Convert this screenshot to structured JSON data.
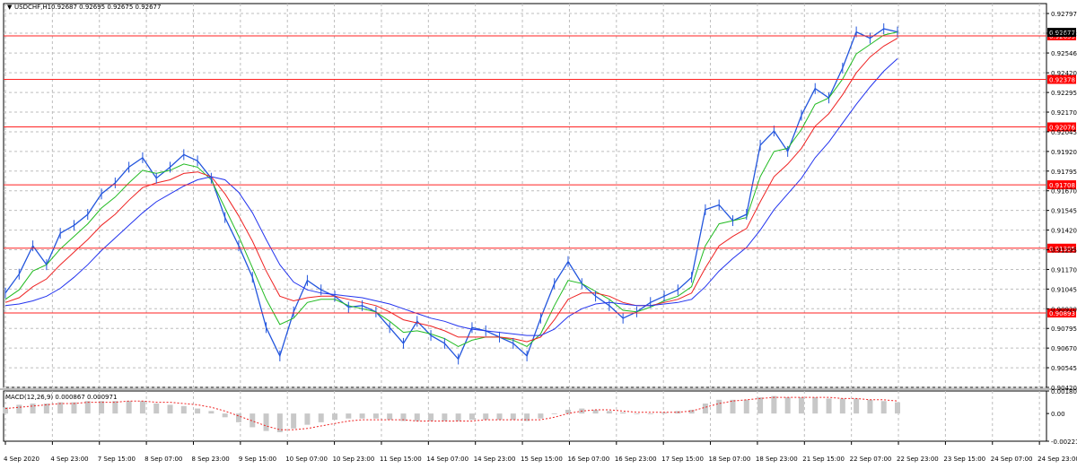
{
  "header": {
    "symbol_label": "USDCHF,H1",
    "ohlc_text": "0.92687 0.92695 0.92675 0.92677"
  },
  "macd": {
    "label": "MACD(12,26,9) 0.000867 0.000971",
    "y_ticks": [
      "0.001807",
      "0.00",
      "-0.002219"
    ]
  },
  "colors": {
    "candles": "#2255dd",
    "ma_fast": "#22bb22",
    "ma_mid": "#ee2222",
    "ma_slow": "#2233ee",
    "level_line": "#ff2222",
    "level_label_bg": "#ff0000",
    "grid": "#bdbdbd"
  },
  "chart_data": {
    "type": "line",
    "title": "USDCHF,H1",
    "ylim": [
      0.9042,
      0.9286
    ],
    "y_ticks": [
      "0.92797",
      "0.92672",
      "0.92546",
      "0.92420",
      "0.92295",
      "0.92170",
      "0.92045",
      "0.91920",
      "0.91795",
      "0.91670",
      "0.91545",
      "0.91420",
      "0.91295",
      "0.91170",
      "0.91045",
      "0.90920",
      "0.90795",
      "0.90670",
      "0.90545",
      "0.90420"
    ],
    "x_ticks": [
      "4 Sep 2020",
      "4 Sep 23:00",
      "7 Sep 15:00",
      "8 Sep 07:00",
      "8 Sep 23:00",
      "9 Sep 15:00",
      "10 Sep 07:00",
      "10 Sep 23:00",
      "11 Sep 15:00",
      "14 Sep 07:00",
      "14 Sep 23:00",
      "15 Sep 15:00",
      "16 Sep 07:00",
      "16 Sep 23:00",
      "17 Sep 15:00",
      "18 Sep 07:00",
      "18 Sep 23:00",
      "21 Sep 15:00",
      "22 Sep 07:00",
      "22 Sep 23:00",
      "23 Sep 15:00",
      "24 Sep 07:00",
      "24 Sep 23:00"
    ],
    "levels": [
      {
        "value": 0.92655,
        "label": "0.92655"
      },
      {
        "value": 0.92378,
        "label": "0.92378"
      },
      {
        "value": 0.92076,
        "label": "0.92076"
      },
      {
        "value": 0.91708,
        "label": "0.91708"
      },
      {
        "value": 0.91305,
        "label": "0.91305"
      },
      {
        "value": 0.90893,
        "label": "0.90893"
      }
    ],
    "current_price": {
      "value": 0.92677,
      "label": "0.92677"
    },
    "series": [
      {
        "key": "price",
        "values": [
          0.9102,
          0.9114,
          0.9132,
          0.912,
          0.914,
          0.9145,
          0.9152,
          0.9165,
          0.9172,
          0.9182,
          0.9188,
          0.9175,
          0.9182,
          0.919,
          0.9186,
          0.9175,
          0.915,
          0.9132,
          0.9112,
          0.908,
          0.9062,
          0.909,
          0.911,
          0.9104,
          0.91,
          0.9093,
          0.9094,
          0.909,
          0.908,
          0.907,
          0.9084,
          0.9075,
          0.907,
          0.906,
          0.908,
          0.9078,
          0.9074,
          0.907,
          0.9062,
          0.9086,
          0.9108,
          0.9122,
          0.9108,
          0.91,
          0.9094,
          0.9086,
          0.909,
          0.9096,
          0.91,
          0.9104,
          0.9112,
          0.9155,
          0.9158,
          0.9148,
          0.9152,
          0.9196,
          0.9205,
          0.9192,
          0.9215,
          0.9232,
          0.9226,
          0.9245,
          0.9268,
          0.9264,
          0.927,
          0.9268
        ]
      },
      {
        "key": "ma_fast",
        "values": [
          0.9098,
          0.9104,
          0.9116,
          0.912,
          0.913,
          0.9138,
          0.9146,
          0.9156,
          0.9163,
          0.9172,
          0.918,
          0.9178,
          0.918,
          0.9184,
          0.9182,
          0.9174,
          0.9156,
          0.9138,
          0.9118,
          0.9098,
          0.9082,
          0.9086,
          0.9096,
          0.9098,
          0.9098,
          0.9094,
          0.9092,
          0.909,
          0.9084,
          0.9077,
          0.9078,
          0.9076,
          0.9073,
          0.9068,
          0.9072,
          0.9074,
          0.9074,
          0.9072,
          0.9068,
          0.9076,
          0.9094,
          0.911,
          0.9108,
          0.9103,
          0.9098,
          0.9091,
          0.909,
          0.9093,
          0.9097,
          0.91,
          0.9106,
          0.9132,
          0.9146,
          0.9148,
          0.915,
          0.9176,
          0.9192,
          0.9194,
          0.9206,
          0.9222,
          0.9226,
          0.9238,
          0.9254,
          0.926,
          0.9266,
          0.9268
        ]
      },
      {
        "key": "ma_mid",
        "values": [
          0.9096,
          0.9099,
          0.9106,
          0.9111,
          0.912,
          0.9128,
          0.9136,
          0.9145,
          0.9152,
          0.9161,
          0.9169,
          0.9172,
          0.9174,
          0.9178,
          0.9179,
          0.9176,
          0.9165,
          0.9151,
          0.9135,
          0.9116,
          0.91,
          0.9097,
          0.9099,
          0.91,
          0.91,
          0.9098,
          0.9096,
          0.9094,
          0.909,
          0.9085,
          0.9083,
          0.9081,
          0.9078,
          0.9074,
          0.9074,
          0.9074,
          0.9074,
          0.9073,
          0.9071,
          0.9074,
          0.9085,
          0.9098,
          0.9102,
          0.9102,
          0.91,
          0.9096,
          0.9094,
          0.9094,
          0.9096,
          0.9098,
          0.9102,
          0.9118,
          0.9132,
          0.9138,
          0.9143,
          0.916,
          0.9176,
          0.9184,
          0.9194,
          0.9208,
          0.9216,
          0.9228,
          0.9242,
          0.9252,
          0.9259,
          0.9264
        ]
      },
      {
        "key": "ma_slow",
        "values": [
          0.9094,
          0.9095,
          0.9097,
          0.91,
          0.9105,
          0.9112,
          0.912,
          0.9129,
          0.9137,
          0.9145,
          0.9153,
          0.916,
          0.9165,
          0.917,
          0.9174,
          0.9176,
          0.9174,
          0.9166,
          0.9153,
          0.9136,
          0.912,
          0.9109,
          0.9104,
          0.9102,
          0.9101,
          0.91,
          0.9099,
          0.9097,
          0.9095,
          0.9092,
          0.9089,
          0.9086,
          0.9084,
          0.9081,
          0.9079,
          0.9078,
          0.9077,
          0.9076,
          0.9075,
          0.9075,
          0.9079,
          0.9087,
          0.9092,
          0.9095,
          0.9096,
          0.9095,
          0.9094,
          0.9094,
          0.9095,
          0.9096,
          0.9098,
          0.9106,
          0.9116,
          0.9124,
          0.9131,
          0.9142,
          0.9155,
          0.9165,
          0.9175,
          0.9188,
          0.9198,
          0.921,
          0.9222,
          0.9233,
          0.9243,
          0.9251
        ]
      }
    ],
    "macd_histogram": [
      0.0005,
      0.0007,
      0.0008,
      0.0008,
      0.0009,
      0.0009,
      0.001,
      0.001,
      0.001,
      0.001,
      0.001,
      0.0008,
      0.0007,
      0.0006,
      0.0004,
      0.0002,
      -0.0003,
      -0.0007,
      -0.0011,
      -0.0014,
      -0.0015,
      -0.0012,
      -0.0009,
      -0.0007,
      -0.0005,
      -0.0004,
      -0.0004,
      -0.0004,
      -0.0005,
      -0.0006,
      -0.0006,
      -0.0006,
      -0.0006,
      -0.0006,
      -0.0005,
      -0.0005,
      -0.0005,
      -0.0005,
      -0.0006,
      -0.0004,
      0.0,
      0.0003,
      0.0004,
      0.0003,
      0.0002,
      0.0001,
      0.0,
      0.0,
      0.0001,
      0.0002,
      0.0003,
      0.0008,
      0.0011,
      0.0011,
      0.0011,
      0.0013,
      0.0014,
      0.0013,
      0.0013,
      0.0013,
      0.0012,
      0.0012,
      0.0012,
      0.0011,
      0.001,
      0.0009
    ],
    "macd_signal": [
      0.0004,
      0.0005,
      0.0006,
      0.0007,
      0.0008,
      0.0008,
      0.0009,
      0.0009,
      0.0009,
      0.001,
      0.001,
      0.0009,
      0.0009,
      0.0008,
      0.0007,
      0.0005,
      0.0002,
      -0.0002,
      -0.0006,
      -0.001,
      -0.0013,
      -0.0013,
      -0.0012,
      -0.001,
      -0.0008,
      -0.0006,
      -0.0005,
      -0.0005,
      -0.0005,
      -0.0005,
      -0.0006,
      -0.0006,
      -0.0006,
      -0.0006,
      -0.0006,
      -0.0005,
      -0.0005,
      -0.0005,
      -0.0005,
      -0.0005,
      -0.0003,
      0.0,
      0.0002,
      0.0003,
      0.0003,
      0.0002,
      0.0001,
      0.0001,
      0.0001,
      0.0001,
      0.0002,
      0.0005,
      0.0008,
      0.001,
      0.0011,
      0.0012,
      0.0013,
      0.0013,
      0.0013,
      0.0013,
      0.0013,
      0.0012,
      0.0012,
      0.0011,
      0.0011,
      0.001
    ]
  }
}
